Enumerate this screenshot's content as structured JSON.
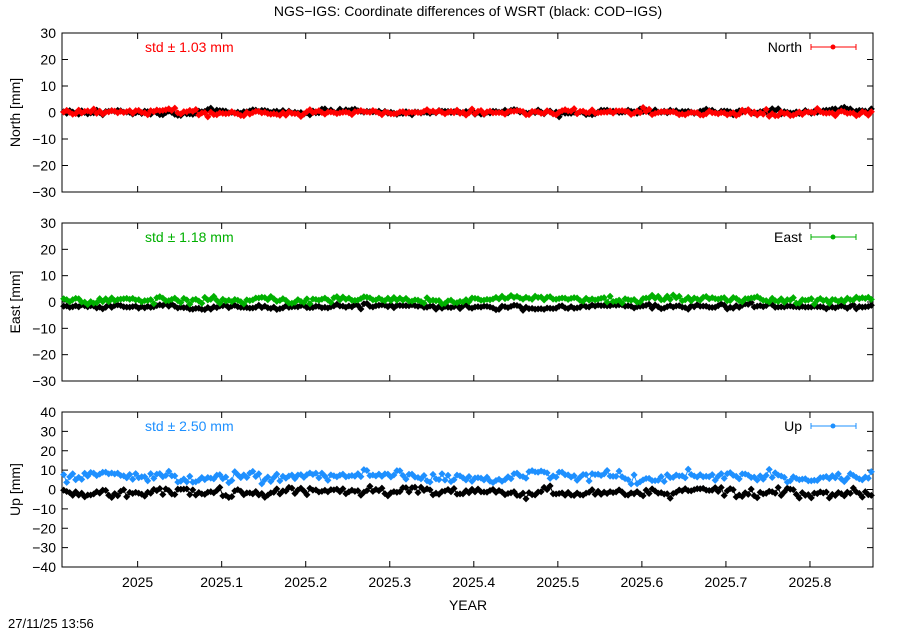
{
  "page": {
    "title": "NGS−IGS: Coordinate differences of WSRT (black: COD−IGS)",
    "timestamp": "27/11/25 13:56",
    "xlabel": "YEAR"
  },
  "chart_data": [
    {
      "type": "scatter",
      "panel": "north",
      "ylabel": "North [mm]",
      "ylim": [
        -30,
        30
      ],
      "yticks": [
        "30",
        "20",
        "10",
        "0",
        "−10",
        "−20",
        "−30"
      ],
      "ytick_values": [
        30,
        20,
        10,
        0,
        -10,
        -20,
        -30
      ],
      "std_label": "std ± 1.03 mm",
      "legend": "North",
      "legend_position": "top-right",
      "color": "#ff0000",
      "xlim": [
        2024.91,
        2025.875
      ],
      "series": [
        {
          "name": "North",
          "color": "#ff0000",
          "mean": 0,
          "spread": 1.03
        },
        {
          "color": "#000000",
          "mean": 0.2,
          "spread": 0.9
        }
      ]
    },
    {
      "type": "scatter",
      "panel": "east",
      "ylabel": "East [mm]",
      "ylim": [
        -30,
        30
      ],
      "yticks": [
        "30",
        "20",
        "10",
        "0",
        "−10",
        "−20",
        "−30"
      ],
      "ytick_values": [
        30,
        20,
        10,
        0,
        -10,
        -20,
        -30
      ],
      "std_label": "std ± 1.18 mm",
      "legend": "East",
      "legend_position": "top-right",
      "color": "#00b000",
      "xlim": [
        2024.91,
        2025.875
      ],
      "series": [
        {
          "name": "East",
          "color": "#00b000",
          "mean": 1.0,
          "spread": 1.18
        },
        {
          "color": "#000000",
          "mean": -1.8,
          "spread": 0.8
        }
      ]
    },
    {
      "type": "scatter",
      "panel": "up",
      "ylabel": "Up [mm]",
      "ylim": [
        -40,
        40
      ],
      "yticks": [
        "40",
        "30",
        "20",
        "10",
        "0",
        "−10",
        "−20",
        "−30",
        "−40"
      ],
      "ytick_values": [
        40,
        30,
        20,
        10,
        0,
        -10,
        -20,
        -30,
        -40
      ],
      "std_label": "std ± 2.50 mm",
      "legend": "Up",
      "legend_position": "top-right",
      "color": "#1e90ff",
      "xlim": [
        2024.91,
        2025.875
      ],
      "series": [
        {
          "name": "Up",
          "color": "#1e90ff",
          "mean": 6.5,
          "spread": 2.5
        },
        {
          "color": "#000000",
          "mean": -1.5,
          "spread": 2.2
        }
      ]
    }
  ],
  "xticks": [
    "2025",
    "2025.1",
    "2025.2",
    "2025.3",
    "2025.4",
    "2025.5",
    "2025.6",
    "2025.7",
    "2025.8"
  ],
  "xtick_values": [
    2025.0,
    2025.1,
    2025.2,
    2025.3,
    2025.4,
    2025.5,
    2025.6,
    2025.7,
    2025.8
  ]
}
